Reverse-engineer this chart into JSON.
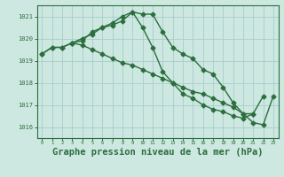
{
  "title": "Graphe pression niveau de la mer (hPa)",
  "background_color": "#cce8e0",
  "grid_color": "#aacccc",
  "line_color": "#2d6e3e",
  "xlim": [
    -0.5,
    23.5
  ],
  "ylim": [
    1015.5,
    1021.5
  ],
  "yticks": [
    1016,
    1017,
    1018,
    1019,
    1020,
    1021
  ],
  "xticks": [
    0,
    1,
    2,
    3,
    4,
    5,
    6,
    7,
    8,
    9,
    10,
    11,
    12,
    13,
    14,
    15,
    16,
    17,
    18,
    19,
    20,
    21,
    22,
    23
  ],
  "series1_x": [
    0,
    1,
    2,
    3,
    4,
    5,
    6,
    7,
    8,
    9,
    10,
    11,
    12,
    13,
    14,
    15,
    16,
    17,
    18,
    19,
    20,
    21,
    22,
    23
  ],
  "series1_y": [
    1019.3,
    1019.6,
    1019.6,
    1019.8,
    1019.9,
    1020.3,
    1020.5,
    1020.6,
    1020.8,
    1021.2,
    1021.1,
    1021.1,
    1020.3,
    1019.6,
    1019.3,
    1019.1,
    1018.6,
    1018.4,
    1017.8,
    1017.1,
    1016.6,
    1016.2,
    1016.1,
    1017.4
  ],
  "series2_x": [
    0,
    1,
    2,
    3,
    4,
    5,
    6,
    7,
    8,
    9,
    10,
    11,
    12,
    13,
    14,
    15,
    16,
    17,
    18,
    19,
    20,
    21
  ],
  "series2_y": [
    1019.3,
    1019.6,
    1019.6,
    1019.8,
    1020.0,
    1020.2,
    1020.5,
    1020.7,
    1021.0,
    1021.2,
    1020.5,
    1019.6,
    1018.5,
    1018.0,
    1017.5,
    1017.3,
    1017.0,
    1016.8,
    1016.7,
    1016.5,
    1016.4,
    1016.6
  ],
  "series3_x": [
    3,
    4,
    5,
    6,
    7,
    8,
    9,
    10,
    11,
    12,
    13,
    14,
    15,
    16,
    17,
    18,
    19,
    20,
    21,
    22
  ],
  "series3_y": [
    1019.8,
    1019.7,
    1019.5,
    1019.3,
    1019.1,
    1018.9,
    1018.8,
    1018.6,
    1018.4,
    1018.2,
    1018.0,
    1017.8,
    1017.6,
    1017.5,
    1017.3,
    1017.1,
    1016.9,
    1016.6,
    1016.6,
    1017.4
  ],
  "marker_size": 2.5,
  "line_width": 1.0,
  "title_fontsize": 7.5
}
